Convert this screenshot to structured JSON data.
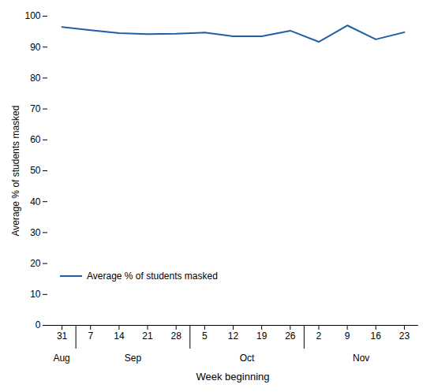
{
  "chart_data": {
    "type": "line",
    "categories": [
      "31",
      "7",
      "14",
      "21",
      "28",
      "5",
      "12",
      "19",
      "26",
      "2",
      "9",
      "16",
      "23"
    ],
    "category_groups": [
      "Aug",
      "Sep",
      "Sep",
      "Sep",
      "Sep",
      "Oct",
      "Oct",
      "Oct",
      "Oct",
      "Nov",
      "Nov",
      "Nov",
      "Nov"
    ],
    "series": [
      {
        "name": "Average % of students masked",
        "color": "#1f5fa6",
        "values": [
          96.5,
          95.5,
          94.5,
          94.2,
          94.3,
          94.7,
          93.5,
          93.5,
          95.3,
          91.7,
          97.0,
          92.5,
          94.8
        ]
      }
    ],
    "xlabel": "Week beginning",
    "ylabel": "Average % of students masked",
    "ylim": [
      0,
      100
    ],
    "yticks": [
      0,
      10,
      20,
      30,
      40,
      50,
      60,
      70,
      80,
      90,
      100
    ],
    "legend": "lower left"
  }
}
